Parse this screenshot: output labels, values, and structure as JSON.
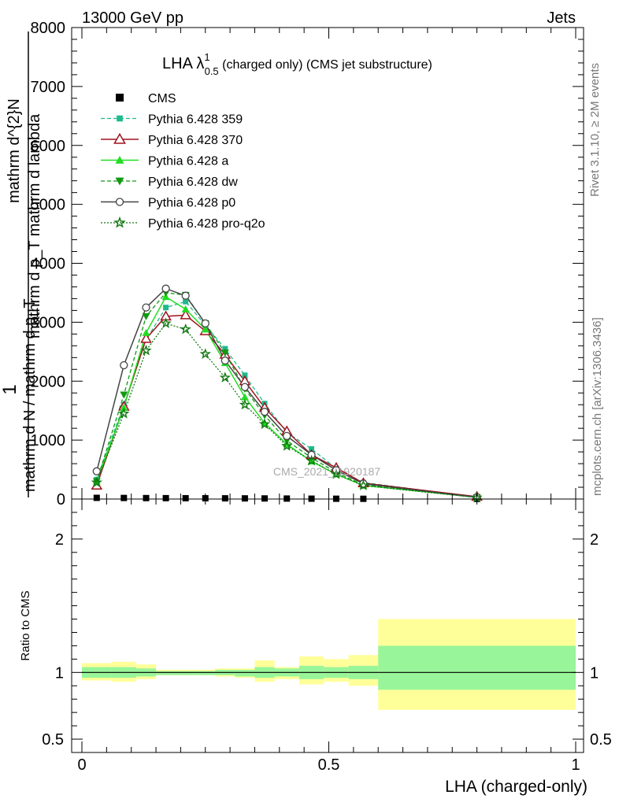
{
  "header": {
    "left": "13000 GeV pp",
    "right": "Jets",
    "side_right_top": "Rivet 3.1.10, ≥ 2M events",
    "side_right_bottom": "mcplots.cern.ch [arXiv:1306.3436]",
    "watermark": "CMS_2021_I1920187"
  },
  "chart_data": [
    {
      "type": "line",
      "title_main": "LHA λ",
      "title_sup": "1",
      "title_sub": "0.5",
      "title_rest": " (charged only) (CMS jet substructure)",
      "ylabel": {
        "lead": "1",
        "numerator": "mathrm d^{2}N",
        "overline": "mathrm d p_T mathrm d lambda",
        "denominator": "mathrm d N / mathrm d p_T"
      },
      "xlim": [
        0,
        1
      ],
      "ylim": [
        0,
        8000
      ],
      "yticks": [
        {
          "v": 0,
          "label": "0"
        },
        {
          "v": 1000,
          "label": "1000"
        },
        {
          "v": 2000,
          "label": "2000"
        },
        {
          "v": 3000,
          "label": "3000"
        },
        {
          "v": 4000,
          "label": "4000"
        },
        {
          "v": 5000,
          "label": "5000"
        },
        {
          "v": 6000,
          "label": "6000"
        },
        {
          "v": 7000,
          "label": "7000"
        },
        {
          "v": 8000,
          "label": "8000"
        }
      ],
      "x": [
        0.03,
        0.085,
        0.13,
        0.17,
        0.21,
        0.25,
        0.29,
        0.33,
        0.37,
        0.415,
        0.465,
        0.515,
        0.57,
        0.8
      ],
      "series": [
        {
          "name": "CMS",
          "color": "#000000",
          "marker": "square",
          "line": "none",
          "values": [
            20,
            18,
            16,
            15,
            14,
            13,
            12,
            11,
            10,
            8,
            6,
            5,
            4,
            2
          ]
        },
        {
          "name": "Pythia 6.428 359",
          "color": "#1fba8c",
          "marker": "smallsquare",
          "line": "dashed",
          "values": [
            330,
            1600,
            2700,
            3250,
            3350,
            2950,
            2550,
            2100,
            1620,
            1130,
            850,
            520,
            280,
            30
          ]
        },
        {
          "name": "Pythia 6.428 370",
          "color": "#a0121e",
          "marker": "triangle-open",
          "line": "solid",
          "values": [
            230,
            1570,
            2720,
            3100,
            3120,
            2850,
            2450,
            2000,
            1550,
            1150,
            750,
            530,
            270,
            40
          ]
        },
        {
          "name": "Pythia 6.428 a",
          "color": "#22dd22",
          "marker": "triangle",
          "line": "solid",
          "values": [
            300,
            1550,
            2820,
            3430,
            3220,
            2880,
            2310,
            1730,
            1290,
            930,
            640,
            420,
            230,
            30
          ]
        },
        {
          "name": "Pythia 6.428 dw",
          "color": "#119911",
          "marker": "triangle-down",
          "line": "dashed",
          "values": [
            300,
            1770,
            3100,
            3500,
            3460,
            2980,
            2480,
            1870,
            1420,
            990,
            700,
            450,
            240,
            30
          ]
        },
        {
          "name": "Pythia 6.428 p0",
          "color": "#444444",
          "marker": "circle-open",
          "line": "solid",
          "values": [
            470,
            2270,
            3250,
            3570,
            3450,
            2980,
            2350,
            1900,
            1480,
            1070,
            750,
            490,
            260,
            30
          ]
        },
        {
          "name": "Pythia 6.428 pro-q2o",
          "color": "#117711",
          "marker": "star",
          "line": "dotted",
          "values": [
            280,
            1450,
            2520,
            2980,
            2880,
            2460,
            2060,
            1600,
            1270,
            900,
            650,
            420,
            230,
            25
          ]
        }
      ]
    },
    {
      "type": "area",
      "ylabel": "Ratio to CMS",
      "xlabel": "LHA (charged-only)",
      "xlim": [
        0,
        1
      ],
      "ylim": [
        0.4,
        2.3
      ],
      "reference_value": 1,
      "xticks": [
        {
          "v": 0,
          "label": "0"
        },
        {
          "v": 0.5,
          "label": "0.5"
        },
        {
          "v": 1,
          "label": "1"
        }
      ],
      "yticks": [
        {
          "v": 0.5,
          "label": "0.5"
        },
        {
          "v": 1,
          "label": "1"
        },
        {
          "v": 2,
          "label": "2"
        }
      ],
      "bins": [
        {
          "lo": 0.0,
          "hi": 0.06,
          "inner": [
            0.96,
            1.04
          ],
          "outer": [
            0.94,
            1.07
          ]
        },
        {
          "lo": 0.06,
          "hi": 0.11,
          "inner": [
            0.96,
            1.04
          ],
          "outer": [
            0.93,
            1.08
          ]
        },
        {
          "lo": 0.11,
          "hi": 0.15,
          "inner": [
            0.97,
            1.03
          ],
          "outer": [
            0.95,
            1.06
          ]
        },
        {
          "lo": 0.15,
          "hi": 0.19,
          "inner": [
            0.98,
            1.01
          ],
          "outer": [
            0.98,
            1.02
          ]
        },
        {
          "lo": 0.19,
          "hi": 0.23,
          "inner": [
            0.98,
            1.01
          ],
          "outer": [
            0.98,
            1.02
          ]
        },
        {
          "lo": 0.23,
          "hi": 0.27,
          "inner": [
            0.98,
            1.01
          ],
          "outer": [
            0.98,
            1.02
          ]
        },
        {
          "lo": 0.27,
          "hi": 0.31,
          "inner": [
            0.98,
            1.02
          ],
          "outer": [
            0.97,
            1.03
          ]
        },
        {
          "lo": 0.31,
          "hi": 0.35,
          "inner": [
            0.97,
            1.02
          ],
          "outer": [
            0.96,
            1.03
          ]
        },
        {
          "lo": 0.35,
          "hi": 0.39,
          "inner": [
            0.96,
            1.04
          ],
          "outer": [
            0.93,
            1.09
          ]
        },
        {
          "lo": 0.39,
          "hi": 0.44,
          "inner": [
            0.97,
            1.03
          ],
          "outer": [
            0.95,
            1.04
          ]
        },
        {
          "lo": 0.44,
          "hi": 0.49,
          "inner": [
            0.95,
            1.05
          ],
          "outer": [
            0.91,
            1.12
          ]
        },
        {
          "lo": 0.49,
          "hi": 0.54,
          "inner": [
            0.96,
            1.04
          ],
          "outer": [
            0.93,
            1.1
          ]
        },
        {
          "lo": 0.54,
          "hi": 0.6,
          "inner": [
            0.95,
            1.05
          ],
          "outer": [
            0.9,
            1.13
          ]
        },
        {
          "lo": 0.6,
          "hi": 1.0,
          "inner": [
            0.87,
            1.2
          ],
          "outer": [
            0.72,
            1.4
          ]
        }
      ]
    }
  ]
}
